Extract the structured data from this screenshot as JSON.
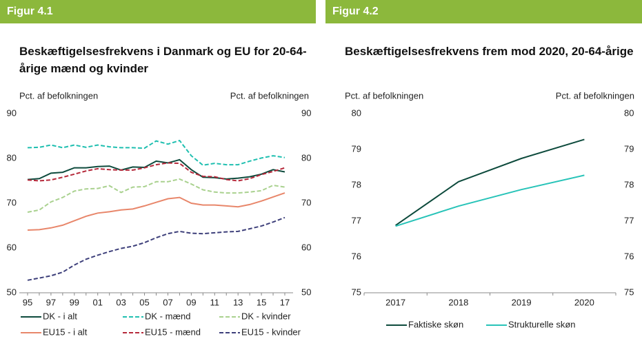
{
  "chart_data": [
    {
      "type": "line",
      "label": "Figur 4.1",
      "title": "Beskæftigelsesfrekvens i Danmark og EU for 20-64-årige mænd og kvinder",
      "ylabel": "Pct. af befolkningen",
      "y2label": "Pct. af befolkningen",
      "categories": [
        "95",
        null,
        "97",
        null,
        "99",
        null,
        "01",
        null,
        "03",
        null,
        "05",
        null,
        "07",
        null,
        "09",
        null,
        "11",
        null,
        "13",
        null,
        "15",
        null,
        "17"
      ],
      "ylim": [
        50,
        90
      ],
      "yticks": [
        50,
        60,
        70,
        80,
        90
      ],
      "y2lim": [
        50,
        90
      ],
      "y2ticks": [
        50,
        60,
        70,
        80,
        90
      ],
      "series": [
        {
          "name": "DK - i alt",
          "color": "#0d4a3c",
          "dashed": false,
          "values": [
            75.3,
            75.5,
            76.7,
            76.9,
            77.9,
            77.9,
            78.2,
            78.3,
            77.4,
            78.1,
            78.0,
            79.4,
            79.0,
            79.7,
            77.5,
            75.8,
            75.7,
            75.4,
            75.6,
            75.9,
            76.5,
            77.5,
            77.0
          ]
        },
        {
          "name": "DK - mænd",
          "color": "#1fbfb0",
          "dashed": true,
          "values": [
            82.4,
            82.5,
            83.0,
            82.4,
            83.0,
            82.5,
            83.0,
            82.6,
            82.4,
            82.4,
            82.3,
            83.9,
            83.2,
            84.0,
            80.6,
            78.5,
            78.9,
            78.6,
            78.6,
            79.4,
            80.1,
            80.6,
            80.2
          ]
        },
        {
          "name": "DK - kvinder",
          "color": "#a9d18e",
          "dashed": true,
          "values": [
            68.0,
            68.5,
            70.3,
            71.3,
            72.7,
            73.2,
            73.3,
            73.9,
            72.4,
            73.6,
            73.7,
            74.8,
            74.8,
            75.4,
            74.3,
            73.0,
            72.5,
            72.3,
            72.3,
            72.5,
            72.8,
            74.0,
            73.6
          ]
        },
        {
          "name": "EU15 - i alt",
          "color": "#e8866a",
          "dashed": false,
          "values": [
            64.0,
            64.1,
            64.5,
            65.1,
            66.1,
            67.1,
            67.8,
            68.1,
            68.5,
            68.7,
            69.4,
            70.2,
            71.0,
            71.3,
            70.0,
            69.6,
            69.6,
            69.4,
            69.2,
            69.7,
            70.5,
            71.4,
            72.3
          ]
        },
        {
          "name": "EU15 - mænd",
          "color": "#b5283a",
          "dashed": true,
          "values": [
            75.2,
            75.0,
            75.2,
            75.8,
            76.5,
            77.2,
            77.7,
            77.5,
            77.4,
            77.4,
            77.9,
            78.6,
            79.0,
            78.9,
            76.9,
            76.0,
            75.9,
            75.3,
            75.0,
            75.5,
            76.4,
            77.1,
            77.9
          ]
        },
        {
          "name": "EU15 - kvinder",
          "color": "#3d3f7a",
          "dashed": true,
          "values": [
            52.8,
            53.3,
            53.8,
            54.6,
            56.2,
            57.5,
            58.4,
            59.2,
            59.9,
            60.4,
            61.2,
            62.3,
            63.2,
            63.7,
            63.3,
            63.2,
            63.4,
            63.6,
            63.7,
            64.3,
            64.9,
            65.8,
            66.8
          ]
        }
      ]
    },
    {
      "type": "line",
      "label": "Figur 4.2",
      "title": "Beskæftigelsesfrekvens frem mod 2020, 20-64-årige",
      "ylabel": "Pct. af befolkningen",
      "y2label": "Pct. af befolkningen",
      "categories": [
        "2017",
        "2018",
        "2019",
        "2020"
      ],
      "ylim": [
        75,
        80
      ],
      "yticks": [
        75,
        76,
        77,
        78,
        79,
        80
      ],
      "y2lim": [
        75,
        80
      ],
      "y2ticks": [
        75,
        76,
        77,
        78,
        79,
        80
      ],
      "series": [
        {
          "name": "Faktiske skøn",
          "color": "#0d4a3c",
          "dashed": false,
          "values": [
            76.88,
            78.1,
            78.75,
            79.28
          ]
        },
        {
          "name": "Strukturelle skøn",
          "color": "#27c3b8",
          "dashed": false,
          "values": [
            76.86,
            77.42,
            77.88,
            78.28
          ]
        }
      ]
    }
  ]
}
